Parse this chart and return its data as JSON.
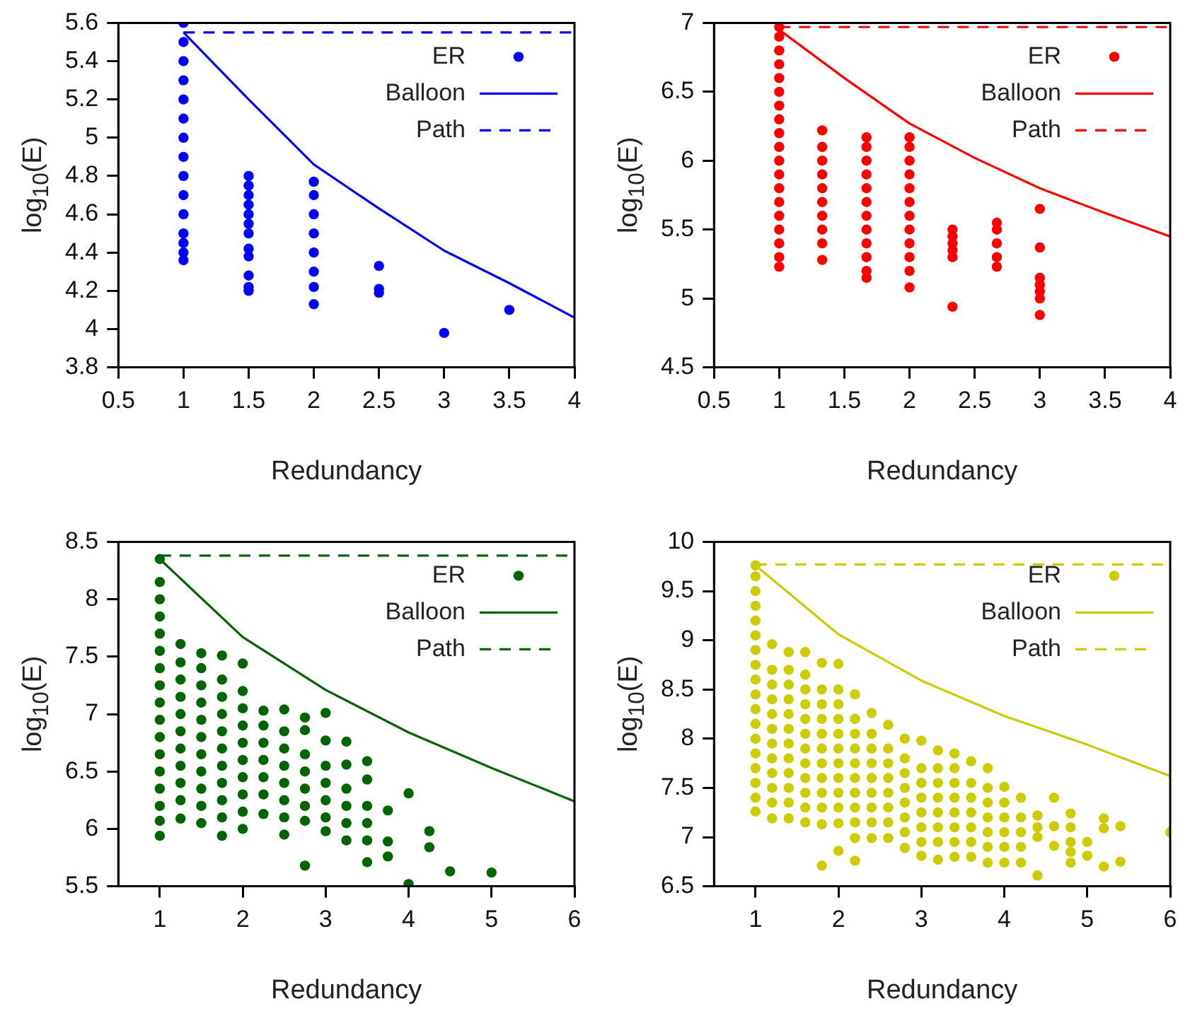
{
  "chart_data": [
    {
      "type": "scatter",
      "xlabel": "Redundancy",
      "ylabel": "log$_{10}$(E)",
      "xlim": [
        0.5,
        4
      ],
      "xticks": [
        0.5,
        1,
        1.5,
        2,
        2.5,
        3,
        3.5,
        4
      ],
      "ylim": [
        3.8,
        5.6
      ],
      "yticks": [
        3.8,
        4,
        4.2,
        4.4,
        4.6,
        4.8,
        5,
        5.2,
        5.4,
        5.6
      ],
      "grid": false,
      "legend": "top right",
      "series": [
        {
          "name": "ER",
          "marker": "circle",
          "color": "#0000ff",
          "x": [
            1,
            1,
            1,
            1,
            1,
            1,
            1,
            1,
            1,
            1,
            1,
            1,
            1,
            1,
            1,
            1.5,
            1.5,
            1.5,
            1.5,
            1.5,
            1.5,
            1.5,
            1.5,
            1.5,
            1.5,
            1.5,
            1.5,
            2,
            2,
            2,
            2,
            2,
            2,
            2,
            2,
            2.5,
            2.5,
            2.5,
            3,
            3.5
          ],
          "values": [
            4.36,
            4.4,
            4.45,
            4.5,
            4.6,
            4.7,
            4.8,
            4.9,
            5.0,
            5.1,
            5.2,
            5.3,
            5.4,
            5.5,
            5.6,
            4.2,
            4.22,
            4.28,
            4.38,
            4.42,
            4.5,
            4.55,
            4.6,
            4.65,
            4.7,
            4.75,
            4.8,
            4.13,
            4.22,
            4.3,
            4.4,
            4.5,
            4.6,
            4.7,
            4.77,
            4.19,
            4.21,
            4.33,
            3.98,
            4.1
          ]
        },
        {
          "name": "Balloon",
          "type": "line",
          "line_style": "solid",
          "color": "#0000ff",
          "x": [
            1,
            1.5,
            2,
            2.5,
            3,
            3.5,
            4
          ],
          "values": [
            5.55,
            5.2,
            4.86,
            4.63,
            4.41,
            4.24,
            4.06
          ]
        },
        {
          "name": "Path",
          "type": "line",
          "line_style": "dashed",
          "color": "#0000ff",
          "x": [
            1,
            4
          ],
          "values": [
            5.55,
            5.55
          ]
        }
      ]
    },
    {
      "type": "scatter",
      "xlabel": "Redundancy",
      "ylabel": "log$_{10}$(E)",
      "xlim": [
        0.5,
        4
      ],
      "xticks": [
        0.5,
        1,
        1.5,
        2,
        2.5,
        3,
        3.5,
        4
      ],
      "ylim": [
        4.5,
        7
      ],
      "yticks": [
        4.5,
        5,
        5.5,
        6,
        6.5,
        7
      ],
      "grid": false,
      "legend": "top right",
      "series": [
        {
          "name": "ER",
          "marker": "circle",
          "color": "#ff0000",
          "x": [
            1,
            1,
            1,
            1,
            1,
            1,
            1,
            1,
            1,
            1,
            1,
            1,
            1,
            1,
            1,
            1,
            1,
            1,
            1,
            1.33,
            1.33,
            1.33,
            1.33,
            1.33,
            1.33,
            1.33,
            1.33,
            1.33,
            1.33,
            1.67,
            1.67,
            1.67,
            1.67,
            1.67,
            1.67,
            1.67,
            1.67,
            1.67,
            1.67,
            1.67,
            1.67,
            2,
            2,
            2,
            2,
            2,
            2,
            2,
            2,
            2,
            2,
            2,
            2,
            2.33,
            2.33,
            2.33,
            2.33,
            2.33,
            2.33,
            2.67,
            2.67,
            2.67,
            2.67,
            2.67,
            3,
            3,
            3,
            3,
            3,
            3,
            3
          ],
          "values": [
            5.23,
            5.3,
            5.4,
            5.5,
            5.6,
            5.7,
            5.8,
            5.9,
            6.0,
            6.1,
            6.2,
            6.3,
            6.4,
            6.5,
            6.6,
            6.7,
            6.8,
            6.9,
            6.97,
            5.28,
            5.4,
            5.5,
            5.6,
            5.7,
            5.8,
            5.9,
            6.0,
            6.1,
            6.22,
            5.15,
            5.2,
            5.3,
            5.4,
            5.5,
            5.6,
            5.7,
            5.8,
            5.9,
            6.0,
            6.1,
            6.17,
            5.08,
            5.2,
            5.3,
            5.4,
            5.5,
            5.6,
            5.7,
            5.8,
            5.9,
            6.0,
            6.1,
            6.17,
            4.94,
            5.3,
            5.35,
            5.4,
            5.45,
            5.5,
            5.23,
            5.3,
            5.4,
            5.5,
            5.55,
            4.88,
            5.0,
            5.05,
            5.1,
            5.15,
            5.37,
            5.65
          ]
        },
        {
          "name": "Balloon",
          "type": "line",
          "line_style": "solid",
          "color": "#ff0000",
          "x": [
            1,
            1.5,
            2,
            2.5,
            3,
            3.5,
            4
          ],
          "values": [
            6.95,
            6.6,
            6.27,
            6.02,
            5.8,
            5.62,
            5.45
          ]
        },
        {
          "name": "Path",
          "type": "line",
          "line_style": "dashed",
          "color": "#ff0000",
          "x": [
            1,
            4
          ],
          "values": [
            6.97,
            6.97
          ]
        }
      ]
    },
    {
      "type": "scatter",
      "xlabel": "Redundancy",
      "ylabel": "log$_{10}$(E)",
      "xlim": [
        0.5,
        6
      ],
      "xticks": [
        1,
        2,
        3,
        4,
        5,
        6
      ],
      "ylim": [
        5.5,
        8.5
      ],
      "yticks": [
        5.5,
        6,
        6.5,
        7,
        7.5,
        8,
        8.5
      ],
      "grid": false,
      "legend": "top right",
      "series": [
        {
          "name": "ER",
          "marker": "circle",
          "color": "#006400",
          "x": [
            1,
            1,
            1,
            1,
            1,
            1,
            1,
            1,
            1,
            1,
            1,
            1,
            1,
            1,
            1,
            1,
            1,
            1.25,
            1.25,
            1.25,
            1.25,
            1.25,
            1.25,
            1.25,
            1.25,
            1.25,
            1.25,
            1.25,
            1.5,
            1.5,
            1.5,
            1.5,
            1.5,
            1.5,
            1.5,
            1.5,
            1.5,
            1.5,
            1.5,
            1.75,
            1.75,
            1.75,
            1.75,
            1.75,
            1.75,
            1.75,
            1.75,
            1.75,
            1.75,
            1.75,
            2,
            2,
            2,
            2,
            2,
            2,
            2,
            2,
            2,
            2,
            2.25,
            2.25,
            2.25,
            2.25,
            2.25,
            2.25,
            2.25,
            2.5,
            2.5,
            2.5,
            2.5,
            2.5,
            2.5,
            2.5,
            2.5,
            2.75,
            2.75,
            2.75,
            2.75,
            2.75,
            2.75,
            2.75,
            2.75,
            3,
            3,
            3,
            3,
            3,
            3,
            3,
            3.25,
            3.25,
            3.25,
            3.25,
            3.25,
            3.25,
            3.5,
            3.5,
            3.5,
            3.5,
            3.5,
            3.5,
            3.75,
            3.75,
            3.75,
            4,
            4,
            4.25,
            4.25,
            4.5,
            5
          ],
          "values": [
            5.94,
            6.07,
            6.2,
            6.35,
            6.5,
            6.65,
            6.8,
            6.95,
            7.1,
            7.25,
            7.4,
            7.55,
            7.7,
            7.85,
            8.0,
            8.15,
            8.35,
            6.09,
            6.25,
            6.4,
            6.55,
            6.7,
            6.85,
            7.0,
            7.15,
            7.3,
            7.45,
            7.61,
            6.05,
            6.2,
            6.35,
            6.5,
            6.65,
            6.8,
            6.95,
            7.1,
            7.25,
            7.4,
            7.53,
            5.94,
            6.1,
            6.25,
            6.4,
            6.55,
            6.7,
            6.85,
            7.0,
            7.15,
            7.3,
            7.51,
            6.0,
            6.15,
            6.3,
            6.45,
            6.6,
            6.75,
            6.9,
            7.05,
            7.2,
            7.44,
            6.13,
            6.3,
            6.45,
            6.6,
            6.75,
            6.9,
            7.03,
            5.95,
            6.1,
            6.25,
            6.4,
            6.55,
            6.7,
            6.85,
            7.04,
            5.68,
            6.07,
            6.2,
            6.35,
            6.5,
            6.65,
            6.86,
            6.97,
            5.98,
            6.1,
            6.25,
            6.4,
            6.55,
            6.77,
            7.01,
            5.9,
            6.05,
            6.2,
            6.35,
            6.56,
            6.76,
            5.71,
            5.9,
            6.05,
            6.2,
            6.43,
            6.59,
            5.76,
            5.89,
            6.16,
            5.52,
            6.31,
            5.84,
            5.98,
            5.63,
            5.62
          ]
        },
        {
          "name": "Balloon",
          "type": "line",
          "line_style": "solid",
          "color": "#006400",
          "x": [
            1,
            2,
            3,
            4,
            5,
            6
          ],
          "values": [
            8.35,
            7.67,
            7.21,
            6.84,
            6.53,
            6.24
          ]
        },
        {
          "name": "Path",
          "type": "line",
          "line_style": "dashed",
          "color": "#006400",
          "x": [
            1,
            6
          ],
          "values": [
            8.38,
            8.38
          ]
        }
      ]
    },
    {
      "type": "scatter",
      "xlabel": "Redundancy",
      "ylabel": "log$_{10}$(E)",
      "xlim": [
        0.5,
        6
      ],
      "xticks": [
        1,
        2,
        3,
        4,
        5,
        6
      ],
      "ylim": [
        6.5,
        10
      ],
      "yticks": [
        6.5,
        7,
        7.5,
        8,
        8.5,
        9,
        9.5,
        10
      ],
      "grid": false,
      "legend": "top right",
      "series": [
        {
          "name": "ER",
          "marker": "circle",
          "color": "#cccc00",
          "x": [
            1,
            1,
            1,
            1,
            1,
            1,
            1,
            1,
            1,
            1,
            1,
            1,
            1,
            1,
            1,
            1,
            1,
            1,
            1.2,
            1.2,
            1.2,
            1.2,
            1.2,
            1.2,
            1.2,
            1.2,
            1.2,
            1.2,
            1.2,
            1.2,
            1.4,
            1.4,
            1.4,
            1.4,
            1.4,
            1.4,
            1.4,
            1.4,
            1.4,
            1.4,
            1.4,
            1.4,
            1.6,
            1.6,
            1.6,
            1.6,
            1.6,
            1.6,
            1.6,
            1.6,
            1.6,
            1.6,
            1.6,
            1.6,
            1.8,
            1.8,
            1.8,
            1.8,
            1.8,
            1.8,
            1.8,
            1.8,
            1.8,
            1.8,
            1.8,
            1.8,
            2,
            2,
            2,
            2,
            2,
            2,
            2,
            2,
            2,
            2,
            2,
            2,
            2.2,
            2.2,
            2.2,
            2.2,
            2.2,
            2.2,
            2.2,
            2.2,
            2.2,
            2.2,
            2.2,
            2.4,
            2.4,
            2.4,
            2.4,
            2.4,
            2.4,
            2.4,
            2.4,
            2.4,
            2.6,
            2.6,
            2.6,
            2.6,
            2.6,
            2.6,
            2.6,
            2.6,
            2.8,
            2.8,
            2.8,
            2.8,
            2.8,
            2.8,
            2.8,
            2.8,
            3,
            3,
            3,
            3,
            3,
            3,
            3,
            3,
            3.2,
            3.2,
            3.2,
            3.2,
            3.2,
            3.2,
            3.2,
            3.2,
            3.4,
            3.4,
            3.4,
            3.4,
            3.4,
            3.4,
            3.4,
            3.4,
            3.6,
            3.6,
            3.6,
            3.6,
            3.6,
            3.6,
            3.6,
            3.8,
            3.8,
            3.8,
            3.8,
            3.8,
            3.8,
            3.8,
            4,
            4,
            4,
            4,
            4,
            4,
            4.2,
            4.2,
            4.2,
            4.2,
            4.2,
            4.4,
            4.4,
            4.4,
            4.4,
            4.6,
            4.6,
            4.6,
            4.8,
            4.8,
            4.8,
            4.8,
            4.8,
            5,
            5,
            5.2,
            5.2,
            5.2,
            5.4,
            5.4,
            6
          ],
          "values": [
            7.26,
            7.4,
            7.55,
            7.7,
            7.85,
            8.0,
            8.15,
            8.3,
            8.45,
            8.6,
            8.75,
            8.9,
            9.05,
            9.2,
            9.35,
            9.5,
            9.65,
            9.76,
            7.19,
            7.35,
            7.5,
            7.65,
            7.8,
            7.95,
            8.1,
            8.25,
            8.4,
            8.55,
            8.7,
            8.96,
            7.19,
            7.35,
            7.5,
            7.65,
            7.8,
            7.95,
            8.1,
            8.25,
            8.4,
            8.55,
            8.7,
            8.88,
            7.15,
            7.3,
            7.45,
            7.6,
            7.75,
            7.9,
            8.05,
            8.2,
            8.35,
            8.5,
            8.65,
            8.88,
            6.71,
            7.13,
            7.3,
            7.45,
            7.6,
            7.75,
            7.9,
            8.05,
            8.2,
            8.35,
            8.5,
            8.77,
            6.86,
            7.14,
            7.3,
            7.45,
            7.6,
            7.75,
            7.9,
            8.05,
            8.2,
            8.35,
            8.5,
            8.76,
            6.76,
            6.99,
            7.15,
            7.3,
            7.45,
            7.6,
            7.75,
            7.9,
            8.05,
            8.2,
            8.45,
            6.99,
            7.15,
            7.3,
            7.45,
            7.6,
            7.75,
            7.9,
            8.05,
            8.26,
            6.99,
            7.15,
            7.3,
            7.45,
            7.6,
            7.75,
            7.9,
            8.14,
            6.89,
            7.05,
            7.2,
            7.35,
            7.5,
            7.65,
            7.8,
            8.0,
            6.81,
            6.95,
            7.1,
            7.25,
            7.4,
            7.55,
            7.7,
            7.98,
            6.77,
            6.95,
            7.1,
            7.25,
            7.4,
            7.55,
            7.7,
            7.88,
            6.8,
            6.95,
            7.1,
            7.25,
            7.4,
            7.55,
            7.7,
            7.85,
            6.8,
            6.95,
            7.1,
            7.25,
            7.4,
            7.55,
            7.77,
            6.74,
            6.9,
            7.05,
            7.2,
            7.35,
            7.5,
            7.7,
            6.74,
            6.9,
            7.05,
            7.2,
            7.35,
            7.51,
            6.74,
            6.9,
            7.05,
            7.2,
            7.4,
            6.61,
            7.0,
            7.1,
            7.22,
            6.91,
            7.11,
            7.4,
            6.74,
            6.85,
            6.95,
            7.1,
            7.24,
            6.81,
            6.95,
            6.7,
            7.09,
            7.19,
            6.75,
            7.11,
            7.05
          ]
        },
        {
          "name": "Balloon",
          "type": "line",
          "line_style": "solid",
          "color": "#cccc00",
          "x": [
            1,
            2,
            3,
            4,
            5,
            6
          ],
          "values": [
            9.76,
            9.06,
            8.59,
            8.23,
            7.94,
            7.62
          ]
        },
        {
          "name": "Path",
          "type": "line",
          "line_style": "dashed",
          "color": "#cccc00",
          "x": [
            1,
            6
          ],
          "values": [
            9.77,
            9.77
          ]
        }
      ]
    }
  ]
}
